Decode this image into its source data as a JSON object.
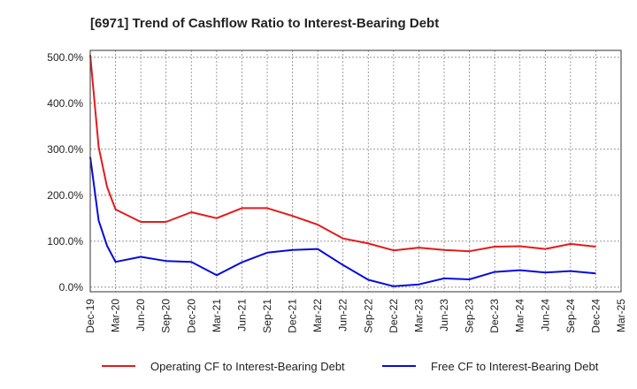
{
  "chart_data": {
    "type": "line",
    "title": "[6971]  Trend of Cashflow Ratio to Interest-Bearing Debt",
    "xlabel": "",
    "ylabel": "",
    "x_ticks": [
      "Dec-19",
      "Mar-20",
      "Jun-20",
      "Sep-20",
      "Dec-20",
      "Mar-21",
      "Jun-21",
      "Sep-21",
      "Dec-21",
      "Mar-22",
      "Jun-22",
      "Sep-22",
      "Dec-22",
      "Mar-23",
      "Jun-23",
      "Sep-23",
      "Dec-23",
      "Mar-24",
      "Jun-24",
      "Sep-24",
      "Dec-24",
      "Mar-25"
    ],
    "y_ticks": [
      "0.0%",
      "100.0%",
      "200.0%",
      "300.0%",
      "400.0%",
      "500.0%"
    ],
    "y_tick_values": [
      0,
      100,
      200,
      300,
      400,
      500
    ],
    "ylim": [
      -10,
      515
    ],
    "grid": true,
    "legend_position": "bottom",
    "x": [
      "Dec-19",
      "Jan-20",
      "Feb-20",
      "Mar-20",
      "Jun-20",
      "Sep-20",
      "Dec-20",
      "Mar-21",
      "Jun-21",
      "Sep-21",
      "Dec-21",
      "Mar-22",
      "Jun-22",
      "Sep-22",
      "Dec-22",
      "Mar-23",
      "Jun-23",
      "Sep-23",
      "Dec-23",
      "Mar-24",
      "Jun-24",
      "Sep-24",
      "Dec-24"
    ],
    "series": [
      {
        "name": "Operating CF to Interest-Bearing Debt",
        "color": "#e41a1c",
        "values": [
          505,
          305,
          218,
          169,
          142,
          142,
          163,
          150,
          172,
          172,
          155,
          136,
          106,
          95,
          80,
          86,
          81,
          78,
          88,
          89,
          83,
          94,
          88
        ]
      },
      {
        "name": "Free CF to Interest-Bearing Debt",
        "color": "#0a0adc",
        "values": [
          283,
          145,
          90,
          55,
          66,
          57,
          55,
          26,
          54,
          75,
          81,
          83,
          48,
          16,
          2,
          6,
          19,
          17,
          33,
          37,
          32,
          35,
          30
        ]
      }
    ]
  }
}
